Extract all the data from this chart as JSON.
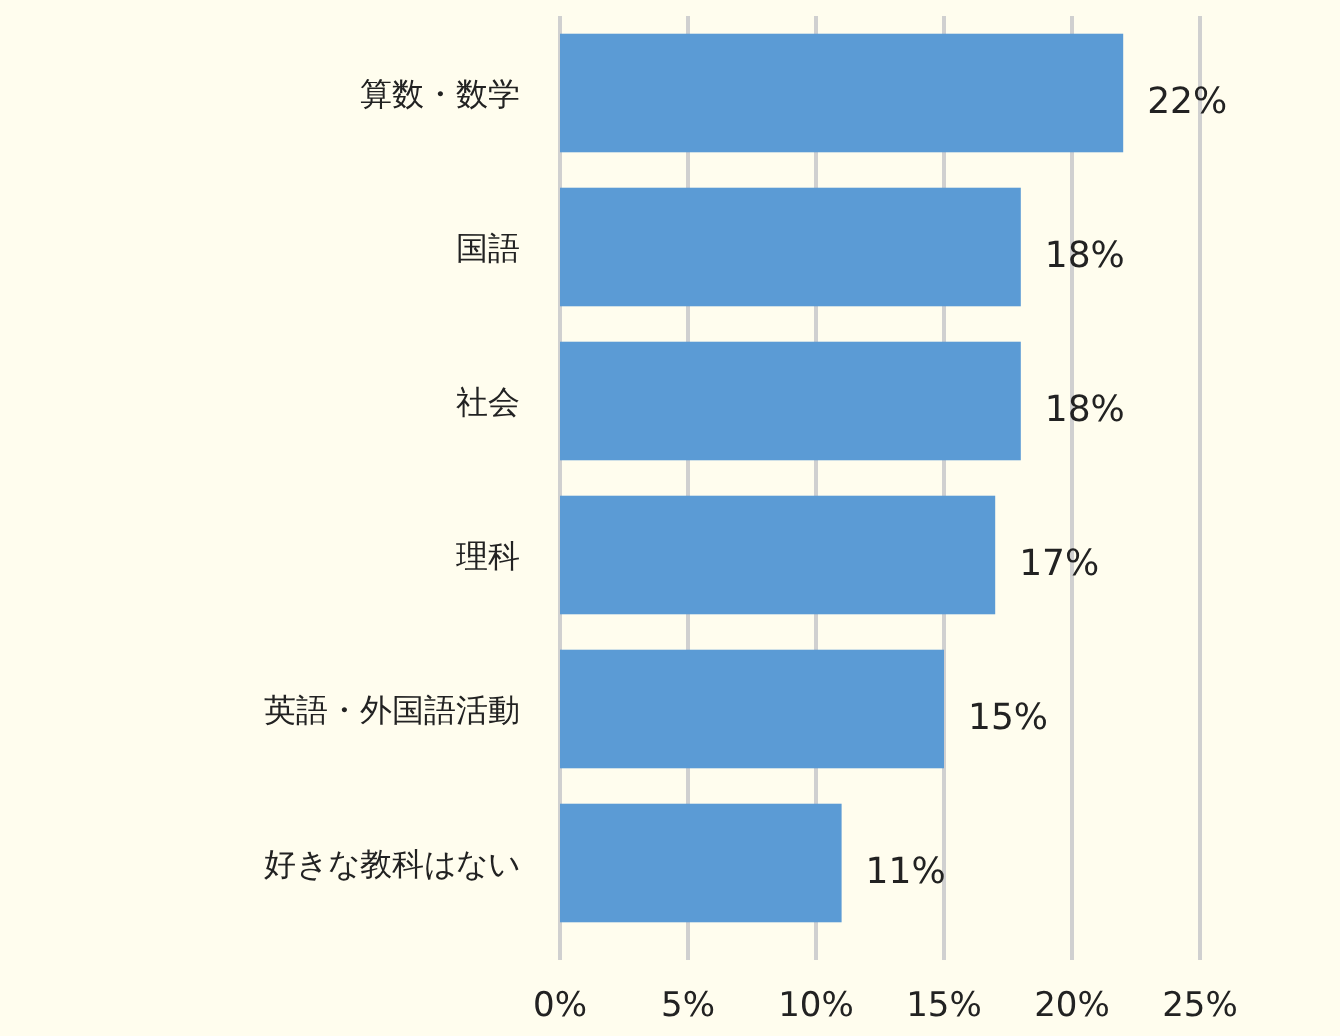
{
  "chart_data": {
    "type": "bar",
    "orientation": "horizontal",
    "categories": [
      "算数・数学",
      "国語",
      "社会",
      "理科",
      "英語・外国語活動",
      "好きな教科はない"
    ],
    "values": [
      22,
      18,
      18,
      17,
      15,
      11
    ],
    "value_labels": [
      "22%",
      "18%",
      "18%",
      "17%",
      "15%",
      "11%"
    ],
    "color": "#5b9bd5",
    "xlim": [
      0,
      25
    ],
    "xticks": [
      {
        "value": 0,
        "label": "0%"
      },
      {
        "value": 5,
        "label": "5%"
      },
      {
        "value": 10,
        "label": "10%"
      },
      {
        "value": 15,
        "label": "15%"
      },
      {
        "value": 20,
        "label": "20%"
      },
      {
        "value": 25,
        "label": "25%"
      }
    ],
    "grid": "x"
  }
}
